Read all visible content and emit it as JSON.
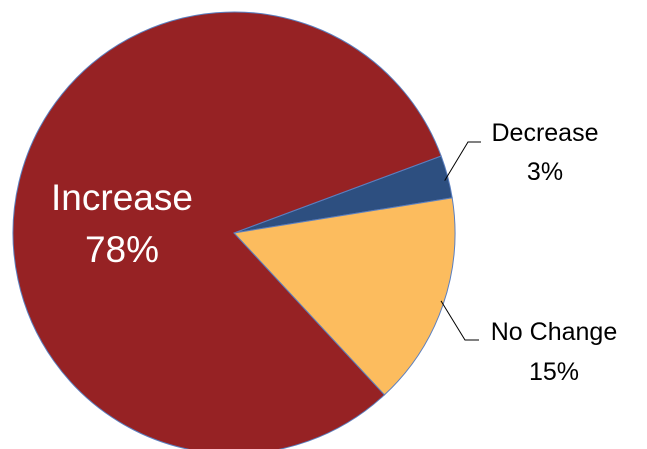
{
  "chart_data": {
    "type": "pie",
    "slices": [
      {
        "name": "Increase",
        "value": 78,
        "value_label": "78%",
        "color": "#962224"
      },
      {
        "name": "Decrease",
        "value": 3,
        "value_label": "3%",
        "color": "#2d4f80"
      },
      {
        "name": "No Change",
        "value": 15,
        "value_label": "15%",
        "color": "#fcbc5e"
      }
    ],
    "colors": {
      "slice_border": "#5b7fbf",
      "leader_line": "#000000",
      "inside_label_text": "#ffffff",
      "outside_label_text": "#000000"
    },
    "legend": "none"
  }
}
